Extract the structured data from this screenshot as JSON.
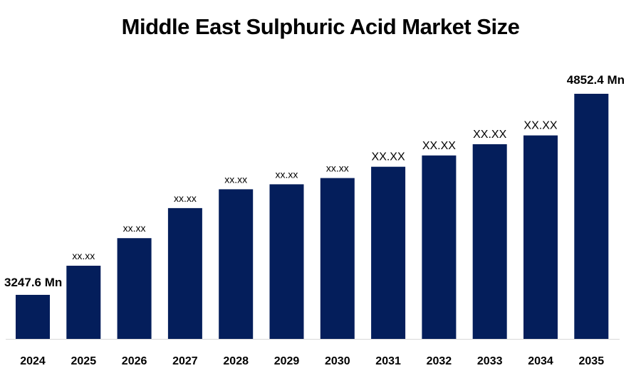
{
  "title": "Middle East Sulphuric Acid Market Size",
  "chart_data": {
    "type": "bar",
    "title": "Middle East Sulphuric Acid Market Size",
    "categories": [
      "2024",
      "2025",
      "2026",
      "2027",
      "2028",
      "2029",
      "2030",
      "2031",
      "2032",
      "2033",
      "2034",
      "2035"
    ],
    "values": [
      3247.6,
      3480,
      3700,
      3940,
      4090,
      4130,
      4180,
      4270,
      4360,
      4450,
      4520,
      4852.4
    ],
    "labels": [
      "3247.6 Mn",
      "xx.xx",
      "xx.xx",
      "xx.xx",
      "xx.xx",
      "xx.xx",
      "xx.xx",
      "XX.XX",
      "XX.XX",
      "XX.XX",
      "XX.XX",
      "4852.4 Mn"
    ],
    "xlabel": "",
    "ylabel": "",
    "grid": false,
    "legend": "none",
    "bar_color": "#041E5B"
  }
}
